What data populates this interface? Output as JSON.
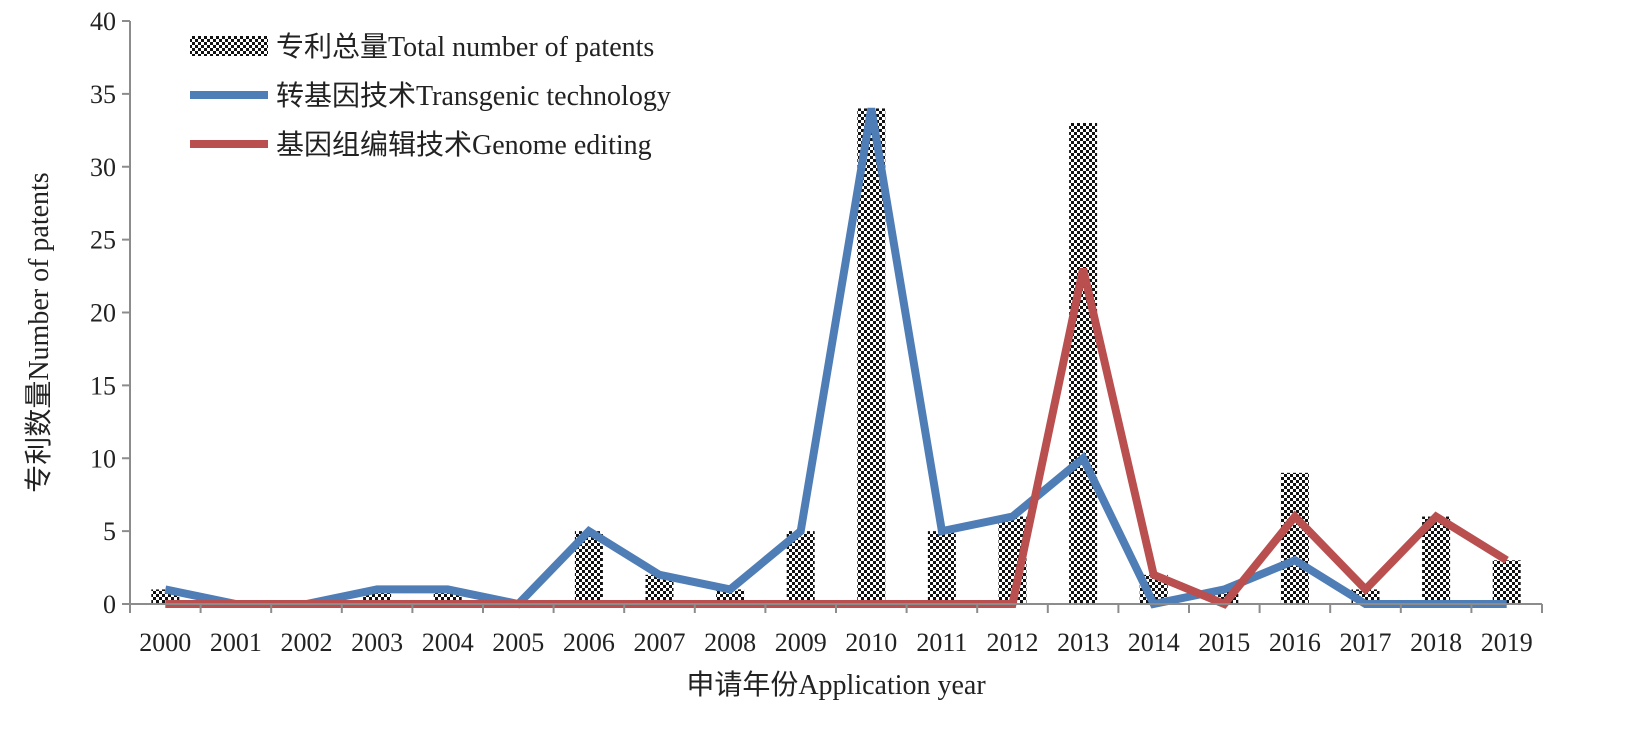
{
  "chart_data": {
    "type": "bar",
    "title": "",
    "xlabel": "申请年份Application year",
    "ylabel": "专利数量Number of patents",
    "ylim": [
      0,
      40
    ],
    "yticks": [
      0,
      5,
      10,
      15,
      20,
      25,
      30,
      35,
      40
    ],
    "grid": false,
    "legend_position": "top-left",
    "categories": [
      "2000",
      "2001",
      "2002",
      "2003",
      "2004",
      "2005",
      "2006",
      "2007",
      "2008",
      "2009",
      "2010",
      "2011",
      "2012",
      "2013",
      "2014",
      "2015",
      "2016",
      "2017",
      "2018",
      "2019"
    ],
    "series": [
      {
        "name": "专利总量Total number of patents",
        "type": "bar",
        "pattern": "checkerboard",
        "color": "#000000",
        "values": [
          1,
          0,
          0,
          1,
          1,
          0,
          5,
          2,
          1,
          5,
          34,
          5,
          6,
          33,
          2,
          1,
          9,
          1,
          6,
          3
        ]
      },
      {
        "name": "转基因技术Transgenic technology",
        "type": "line",
        "color": "#4f7db6",
        "values": [
          1,
          0,
          0,
          1,
          1,
          0,
          5,
          2,
          1,
          5,
          34,
          5,
          6,
          10,
          0,
          1,
          3,
          0,
          0,
          0
        ]
      },
      {
        "name": "基因组编辑技术Genome editing",
        "type": "line",
        "color": "#b9504f",
        "values": [
          0,
          0,
          0,
          0,
          0,
          0,
          0,
          0,
          0,
          0,
          0,
          0,
          0,
          23,
          2,
          0,
          6,
          1,
          6,
          3
        ]
      }
    ]
  }
}
